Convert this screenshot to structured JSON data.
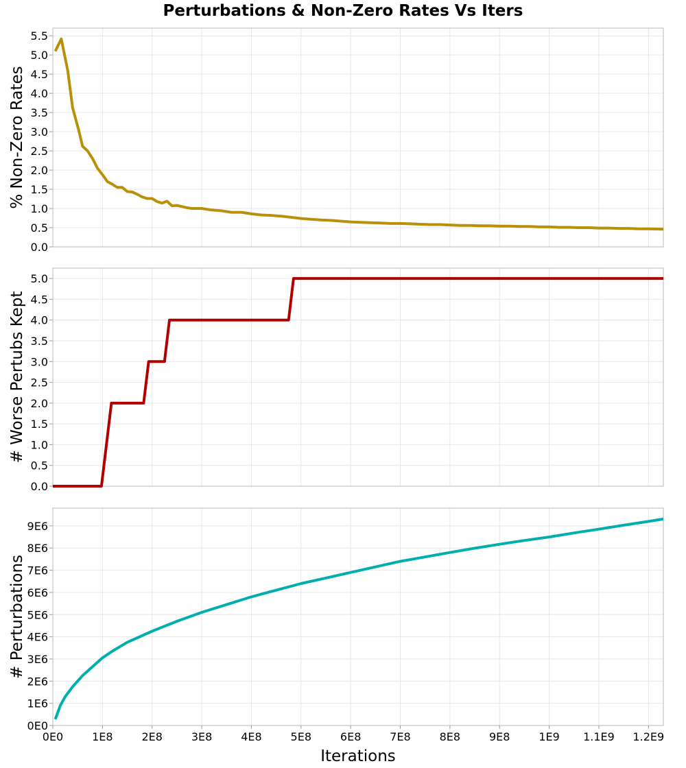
{
  "title": "Perturbations & Non-Zero Rates Vs Iters",
  "x_axis": {
    "label": "Iterations",
    "range": [
      0,
      1230000000
    ],
    "ticks": [
      {
        "value": 0,
        "label": "0E0"
      },
      {
        "value": 100000000,
        "label": "1E8"
      },
      {
        "value": 200000000,
        "label": "2E8"
      },
      {
        "value": 300000000,
        "label": "3E8"
      },
      {
        "value": 400000000,
        "label": "4E8"
      },
      {
        "value": 500000000,
        "label": "5E8"
      },
      {
        "value": 600000000,
        "label": "6E8"
      },
      {
        "value": 700000000,
        "label": "7E8"
      },
      {
        "value": 800000000,
        "label": "8E8"
      },
      {
        "value": 900000000,
        "label": "9E8"
      },
      {
        "value": 1000000000,
        "label": "1E9"
      },
      {
        "value": 1100000000,
        "label": "1.1E9"
      },
      {
        "value": 1200000000,
        "label": "1.2E9"
      }
    ]
  },
  "chart_data": [
    {
      "type": "line",
      "ylabel": "% Non-Zero Rates",
      "ylim": [
        0,
        5.7
      ],
      "color": "#b8900a",
      "grid": true,
      "yticks": [
        "0.0",
        "0.5",
        "1.0",
        "1.5",
        "2.0",
        "2.5",
        "3.0",
        "3.5",
        "4.0",
        "4.5",
        "5.0",
        "5.5"
      ],
      "x": [
        5000000,
        17000000,
        30000000,
        40000000,
        52000000,
        60000000,
        70000000,
        80000000,
        90000000,
        100000000,
        110000000,
        120000000,
        130000000,
        140000000,
        150000000,
        160000000,
        170000000,
        180000000,
        190000000,
        200000000,
        210000000,
        220000000,
        230000000,
        240000000,
        250000000,
        260000000,
        270000000,
        280000000,
        300000000,
        320000000,
        340000000,
        360000000,
        380000000,
        400000000,
        420000000,
        440000000,
        460000000,
        480000000,
        500000000,
        520000000,
        540000000,
        560000000,
        580000000,
        600000000,
        620000000,
        640000000,
        660000000,
        680000000,
        700000000,
        720000000,
        740000000,
        760000000,
        780000000,
        800000000,
        820000000,
        840000000,
        860000000,
        880000000,
        900000000,
        920000000,
        940000000,
        960000000,
        980000000,
        1000000000,
        1020000000,
        1040000000,
        1060000000,
        1080000000,
        1100000000,
        1120000000,
        1140000000,
        1160000000,
        1180000000,
        1200000000,
        1230000000
      ],
      "y": [
        5.1,
        5.42,
        4.6,
        3.62,
        3.05,
        2.62,
        2.5,
        2.3,
        2.05,
        1.88,
        1.7,
        1.63,
        1.55,
        1.55,
        1.44,
        1.43,
        1.37,
        1.3,
        1.26,
        1.26,
        1.18,
        1.14,
        1.19,
        1.07,
        1.08,
        1.05,
        1.02,
        1.0,
        1.0,
        0.96,
        0.94,
        0.9,
        0.9,
        0.86,
        0.83,
        0.82,
        0.8,
        0.77,
        0.74,
        0.72,
        0.7,
        0.69,
        0.67,
        0.65,
        0.64,
        0.63,
        0.62,
        0.61,
        0.61,
        0.6,
        0.59,
        0.58,
        0.58,
        0.57,
        0.56,
        0.56,
        0.55,
        0.55,
        0.54,
        0.54,
        0.53,
        0.53,
        0.52,
        0.52,
        0.51,
        0.51,
        0.5,
        0.5,
        0.49,
        0.49,
        0.48,
        0.48,
        0.47,
        0.47,
        0.46
      ]
    },
    {
      "type": "line",
      "ylabel": "# Worse Pertubs Kept",
      "ylim": [
        0,
        5.25
      ],
      "color": "#b00000",
      "grid": true,
      "yticks": [
        "0.0",
        "0.5",
        "1.0",
        "1.5",
        "2.0",
        "2.5",
        "3.0",
        "3.5",
        "4.0",
        "4.5",
        "5.0"
      ],
      "x": [
        0,
        98000000,
        118000000,
        183000000,
        193000000,
        225000000,
        235000000,
        475000000,
        485000000,
        1230000000
      ],
      "y": [
        0,
        0,
        2,
        2,
        3,
        3,
        4,
        4,
        5,
        5
      ]
    },
    {
      "type": "line",
      "ylabel": "# Perturbations",
      "ylim": [
        0,
        9800000
      ],
      "color": "#00aeae",
      "grid": true,
      "yticks": [
        "0E0",
        "1E6",
        "2E6",
        "3E6",
        "4E6",
        "5E6",
        "6E6",
        "7E6",
        "8E6",
        "9E6"
      ],
      "x": [
        5000000,
        15000000,
        25000000,
        40000000,
        60000000,
        80000000,
        100000000,
        120000000,
        150000000,
        180000000,
        200000000,
        250000000,
        300000000,
        350000000,
        400000000,
        450000000,
        500000000,
        550000000,
        600000000,
        650000000,
        700000000,
        750000000,
        800000000,
        850000000,
        900000000,
        950000000,
        1000000000,
        1050000000,
        1100000000,
        1150000000,
        1200000000,
        1230000000
      ],
      "y": [
        280000,
        900000,
        1300000,
        1750000,
        2250000,
        2650000,
        3050000,
        3350000,
        3750000,
        4050000,
        4250000,
        4700000,
        5100000,
        5450000,
        5800000,
        6100000,
        6400000,
        6650000,
        6900000,
        7150000,
        7400000,
        7600000,
        7800000,
        7990000,
        8170000,
        8340000,
        8500000,
        8680000,
        8850000,
        9030000,
        9200000,
        9310000
      ]
    }
  ]
}
